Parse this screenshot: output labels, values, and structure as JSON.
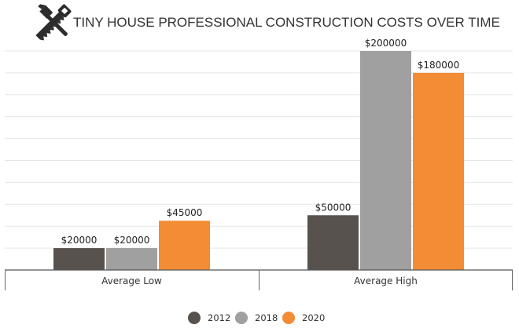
{
  "chart_data": {
    "type": "bar",
    "title": "TINY HOUSE PROFESSIONAL CONSTRUCTION COSTS OVER TIME",
    "categories": [
      "Average Low",
      "Average High"
    ],
    "series": [
      {
        "name": "2012",
        "values": [
          20000,
          50000
        ],
        "color": "#57524d",
        "labels": [
          "$20000",
          "$50000"
        ]
      },
      {
        "name": "2018",
        "values": [
          20000,
          200000
        ],
        "color": "#a0a0a0",
        "labels": [
          "$20000",
          "$200000"
        ]
      },
      {
        "name": "2020",
        "values": [
          45000,
          180000
        ],
        "color": "#f28c35",
        "labels": [
          "$45000",
          "$180000"
        ]
      }
    ],
    "ylim": [
      0,
      200000
    ],
    "grid": true,
    "legend_position": "bottom",
    "icon": "hammer-saw-icon"
  }
}
